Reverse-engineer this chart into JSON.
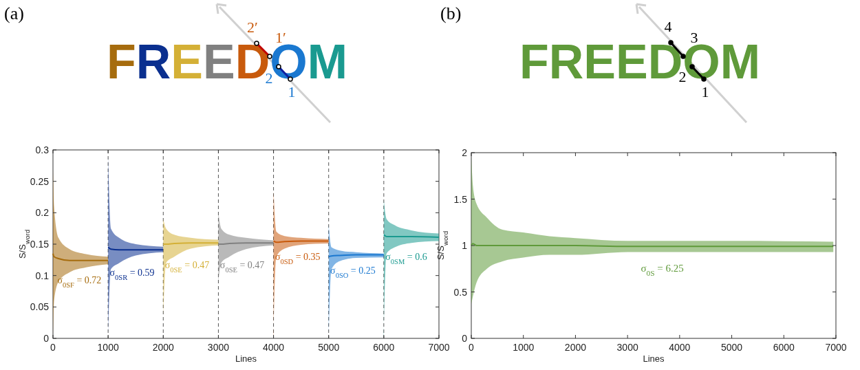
{
  "chart_data": [
    {
      "type": "line",
      "xlabel": "Lines",
      "ylabel": "S/S$_{word}$",
      "xlim": [
        0,
        7000
      ],
      "xticks": [
        0,
        1000,
        2000,
        3000,
        4000,
        5000,
        6000,
        7000
      ],
      "ylim": [
        0,
        0.3
      ],
      "yticks": [
        0,
        0.05,
        0.1,
        0.15,
        0.2,
        0.25,
        0.3
      ],
      "grid": false,
      "ref_lines": [
        {
          "axis": "x",
          "value": 1000,
          "color": "#555555",
          "line_style": "dashed"
        },
        {
          "axis": "x",
          "value": 2000,
          "color": "#555555",
          "line_style": "dashed"
        },
        {
          "axis": "x",
          "value": 3000,
          "color": "#555555",
          "line_style": "dashed"
        },
        {
          "axis": "x",
          "value": 4000,
          "color": "#555555",
          "line_style": "dashed"
        },
        {
          "axis": "x",
          "value": 5000,
          "color": "#555555",
          "line_style": "dashed"
        },
        {
          "axis": "x",
          "value": 6000,
          "color": "#555555",
          "line_style": "dashed"
        }
      ],
      "series": [
        {
          "color": "#a66c0e",
          "x": [
            0,
            20,
            100,
            300,
            600,
            1000
          ],
          "values": [
            0.135,
            0.13,
            0.127,
            0.124,
            0.124,
            0.124
          ],
          "lower": [
            0.0,
            0.06,
            0.09,
            0.105,
            0.113,
            0.118
          ],
          "upper": [
            0.27,
            0.21,
            0.16,
            0.142,
            0.134,
            0.13
          ]
        },
        {
          "color": "#0a2f8f",
          "x": [
            1000,
            1050,
            1200,
            1500,
            2000
          ],
          "values": [
            0.145,
            0.142,
            0.141,
            0.141,
            0.141
          ],
          "lower": [
            0.0,
            0.11,
            0.12,
            0.132,
            0.137
          ],
          "upper": [
            0.29,
            0.175,
            0.16,
            0.15,
            0.146
          ]
        },
        {
          "color": "#d4b036",
          "x": [
            2000,
            2050,
            2200,
            2500,
            3000
          ],
          "values": [
            0.15,
            0.15,
            0.151,
            0.152,
            0.152
          ],
          "lower": [
            0.03,
            0.12,
            0.13,
            0.143,
            0.148
          ],
          "upper": [
            0.19,
            0.175,
            0.165,
            0.16,
            0.157
          ]
        },
        {
          "color": "#808080",
          "x": [
            3000,
            3050,
            3200,
            3500,
            4000
          ],
          "values": [
            0.15,
            0.15,
            0.151,
            0.152,
            0.152
          ],
          "lower": [
            0.09,
            0.12,
            0.13,
            0.142,
            0.148
          ],
          "upper": [
            0.2,
            0.175,
            0.165,
            0.16,
            0.156
          ]
        },
        {
          "color": "#c85a0c",
          "x": [
            4000,
            4050,
            4200,
            4500,
            5000
          ],
          "values": [
            0.155,
            0.153,
            0.154,
            0.155,
            0.155
          ],
          "lower": [
            0.0,
            0.13,
            0.143,
            0.149,
            0.151
          ],
          "upper": [
            0.235,
            0.17,
            0.163,
            0.16,
            0.158
          ]
        },
        {
          "color": "#1a78d0",
          "x": [
            5000,
            5050,
            5200,
            5500,
            6000
          ],
          "values": [
            0.13,
            0.131,
            0.132,
            0.133,
            0.133
          ],
          "lower": [
            0.0,
            0.11,
            0.123,
            0.128,
            0.129
          ],
          "upper": [
            0.18,
            0.145,
            0.14,
            0.137,
            0.135
          ]
        },
        {
          "color": "#1a9a90",
          "x": [
            6000,
            6050,
            6200,
            6500,
            7000
          ],
          "values": [
            0.165,
            0.162,
            0.162,
            0.162,
            0.161
          ],
          "lower": [
            0.0,
            0.135,
            0.145,
            0.152,
            0.155
          ],
          "upper": [
            0.22,
            0.19,
            0.18,
            0.172,
            0.167
          ]
        }
      ],
      "annotations": [
        "(a)",
        "FREEDOM",
        "2′",
        "1′",
        "2",
        "1",
        {
          "text": "σ$_{0SF}$ = 0.72",
          "x": 80,
          "y": 0.088
        },
        {
          "text": "σ$_{0SR}$ = 0.59",
          "x": 1030,
          "y": 0.1
        },
        {
          "text": "σ$_{0SE}$ = 0.47",
          "x": 2030,
          "y": 0.112
        },
        {
          "text": "σ$_{0SE}$ = 0.47",
          "x": 3030,
          "y": 0.112
        },
        {
          "text": "σ$_{0SD}$ = 0.35",
          "x": 4030,
          "y": 0.125
        },
        {
          "text": "σ$_{0SO}$ = 0.25",
          "x": 5030,
          "y": 0.103
        },
        {
          "text": "σ$_{0SM}$ = 0.6",
          "x": 6030,
          "y": 0.125
        }
      ]
    },
    {
      "type": "line",
      "xlabel": "Lines",
      "ylabel": "S/S$_{word}$",
      "xlim": [
        0,
        7000
      ],
      "xticks": [
        0,
        1000,
        2000,
        3000,
        4000,
        5000,
        6000,
        7000
      ],
      "ylim": [
        0,
        2
      ],
      "yticks": [
        0,
        0.5,
        1,
        1.5,
        2
      ],
      "grid": false,
      "series": [
        {
          "color": "#5f9a3a",
          "x": [
            0,
            30,
            100,
            300,
            600,
            1000,
            1500,
            2000,
            3000,
            5000,
            6950
          ],
          "values": [
            1.0,
            1.02,
            1.0,
            1.0,
            1.0,
            1.0,
            1.0,
            1.0,
            0.99,
            0.99,
            0.99
          ],
          "lower": [
            0.37,
            0.45,
            0.6,
            0.75,
            0.83,
            0.87,
            0.9,
            0.9,
            0.93,
            0.93,
            0.93
          ],
          "upper": [
            1.95,
            1.65,
            1.45,
            1.3,
            1.17,
            1.14,
            1.1,
            1.08,
            1.05,
            1.05,
            1.04
          ]
        }
      ],
      "annotations": [
        "(b)",
        "FREEDOM",
        "4",
        "3",
        "2",
        "1",
        "σ$_{0S}$ = 6.25"
      ]
    }
  ]
}
